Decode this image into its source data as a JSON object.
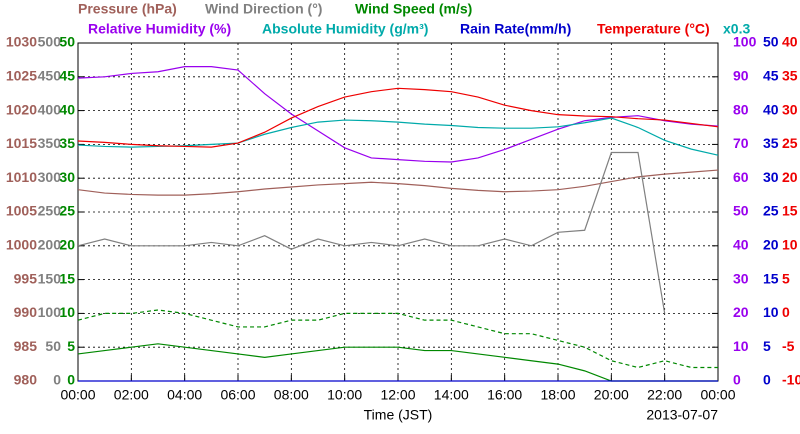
{
  "chart_data": {
    "type": "line",
    "x_label": "Time (JST)",
    "date": "2013-07-07",
    "xlim": [
      0,
      24
    ],
    "xticks": [
      {
        "value": 0,
        "label": "00:00"
      },
      {
        "value": 2,
        "label": "02:00"
      },
      {
        "value": 4,
        "label": "04:00"
      },
      {
        "value": 6,
        "label": "06:00"
      },
      {
        "value": 8,
        "label": "08:00"
      },
      {
        "value": 10,
        "label": "10:00"
      },
      {
        "value": 12,
        "label": "12:00"
      },
      {
        "value": 14,
        "label": "14:00"
      },
      {
        "value": 16,
        "label": "16:00"
      },
      {
        "value": 18,
        "label": "18:00"
      },
      {
        "value": 20,
        "label": "20:00"
      },
      {
        "value": 22,
        "label": "22:00"
      },
      {
        "value": 24,
        "label": "00:00"
      }
    ],
    "grid": true,
    "axes": [
      {
        "color": "#a0605a",
        "side": "left",
        "lim": [
          980,
          1030
        ],
        "ticks": [
          980,
          985,
          990,
          995,
          1000,
          1005,
          1010,
          1015,
          1020,
          1025,
          1030
        ]
      },
      {
        "color": "#808080",
        "side": "left",
        "lim": [
          0,
          500
        ],
        "ticks": [
          0,
          50,
          100,
          150,
          200,
          250,
          300,
          350,
          400,
          450,
          500
        ]
      },
      {
        "color": "#008800",
        "side": "left",
        "lim": [
          0,
          50
        ],
        "ticks": [
          0,
          5,
          10,
          15,
          20,
          25,
          30,
          35,
          40,
          45,
          50
        ]
      },
      {
        "color": "#9900ee",
        "side": "right",
        "lim": [
          0,
          100
        ],
        "ticks": [
          0,
          10,
          20,
          30,
          40,
          50,
          60,
          70,
          80,
          90,
          100
        ]
      },
      {
        "color": "#0000cc",
        "side": "right",
        "lim": [
          0,
          50
        ],
        "ticks": [
          0,
          5,
          10,
          15,
          20,
          25,
          30,
          35,
          40,
          45,
          50
        ]
      },
      {
        "color": "#ee0000",
        "side": "right",
        "lim": [
          -10,
          40
        ],
        "ticks": [
          -10,
          -5,
          0,
          5,
          10,
          15,
          20,
          25,
          30,
          35,
          40
        ]
      }
    ],
    "x": [
      0,
      1,
      2,
      3,
      4,
      5,
      6,
      7,
      8,
      9,
      10,
      11,
      12,
      13,
      14,
      15,
      16,
      17,
      18,
      19,
      20,
      21,
      22,
      23,
      24
    ],
    "series": [
      {
        "name": "Pressure (hPa)",
        "color": "#a0605a",
        "axis": 0,
        "values": [
          1008.3,
          1007.8,
          1007.6,
          1007.5,
          1007.5,
          1007.7,
          1008.0,
          1008.4,
          1008.7,
          1009.0,
          1009.2,
          1009.4,
          1009.2,
          1008.9,
          1008.5,
          1008.2,
          1008.0,
          1008.1,
          1008.3,
          1008.8,
          1009.5,
          1010.2,
          1010.6,
          1010.9,
          1011.2
        ]
      },
      {
        "name": "Wind Direction (°)",
        "color": "#808080",
        "axis": 1,
        "values": [
          200,
          210,
          200,
          200,
          200,
          205,
          200,
          215,
          195,
          210,
          200,
          205,
          200,
          210,
          200,
          200,
          210,
          200,
          220,
          223,
          338,
          338,
          100,
          null,
          null
        ]
      },
      {
        "name": "Wind Speed (m/s)",
        "color": "#008800",
        "axis": 2,
        "values": [
          4,
          4.5,
          5,
          5.5,
          5,
          4.5,
          4,
          3.5,
          4,
          4.5,
          5,
          5,
          5,
          4.5,
          4.5,
          4,
          3.5,
          3,
          2.5,
          1.5,
          0,
          0,
          0,
          0,
          0
        ]
      },
      {
        "color": "#008800",
        "axis": 2,
        "dashed": true,
        "values": [
          9,
          10,
          10,
          10.5,
          10,
          9,
          8,
          8,
          9,
          9,
          10,
          10,
          10,
          9,
          9,
          8,
          7,
          7,
          6,
          5,
          3,
          2,
          3,
          2,
          2
        ]
      },
      {
        "name": "Relative Humidity (%)",
        "color": "#9900ee",
        "axis": 3,
        "values": [
          89.6,
          90,
          91,
          91.5,
          93,
          93,
          92,
          85,
          79,
          74,
          69,
          66,
          65.5,
          65,
          64.8,
          66,
          68.5,
          71.5,
          74.5,
          77,
          78,
          78.5,
          77,
          76,
          75.4
        ]
      },
      {
        "name": "Absolute Humidity (g/m³)",
        "scale_note": "x0.3",
        "color": "#00aaaa",
        "axis": 4,
        "values": [
          34.9,
          34.7,
          34.6,
          34.7,
          34.8,
          35,
          35.2,
          36.5,
          37.5,
          38.3,
          38.6,
          38.5,
          38.3,
          38,
          37.8,
          37.5,
          37.4,
          37.4,
          37.6,
          38.2,
          38.9,
          37.5,
          35.6,
          34.3,
          33.4
        ]
      },
      {
        "name": "Rain Rate(mm/h)",
        "color": "#0000cc",
        "axis": 4,
        "values": [
          0,
          0,
          0,
          0,
          0,
          0,
          0,
          0,
          0,
          0,
          0,
          0,
          0,
          0,
          0,
          0,
          0,
          0,
          0,
          0,
          0,
          0,
          0,
          0,
          0
        ]
      },
      {
        "name": "Temperature (°C)",
        "color": "#ee0000",
        "axis": 5,
        "values": [
          25.5,
          25.3,
          25,
          24.8,
          24.7,
          24.6,
          25.2,
          26.8,
          28.9,
          30.6,
          32,
          32.8,
          33.3,
          33.1,
          32.8,
          32,
          30.8,
          30,
          29.4,
          29.2,
          29.1,
          28.8,
          28.6,
          28.1,
          27.6
        ]
      }
    ]
  }
}
